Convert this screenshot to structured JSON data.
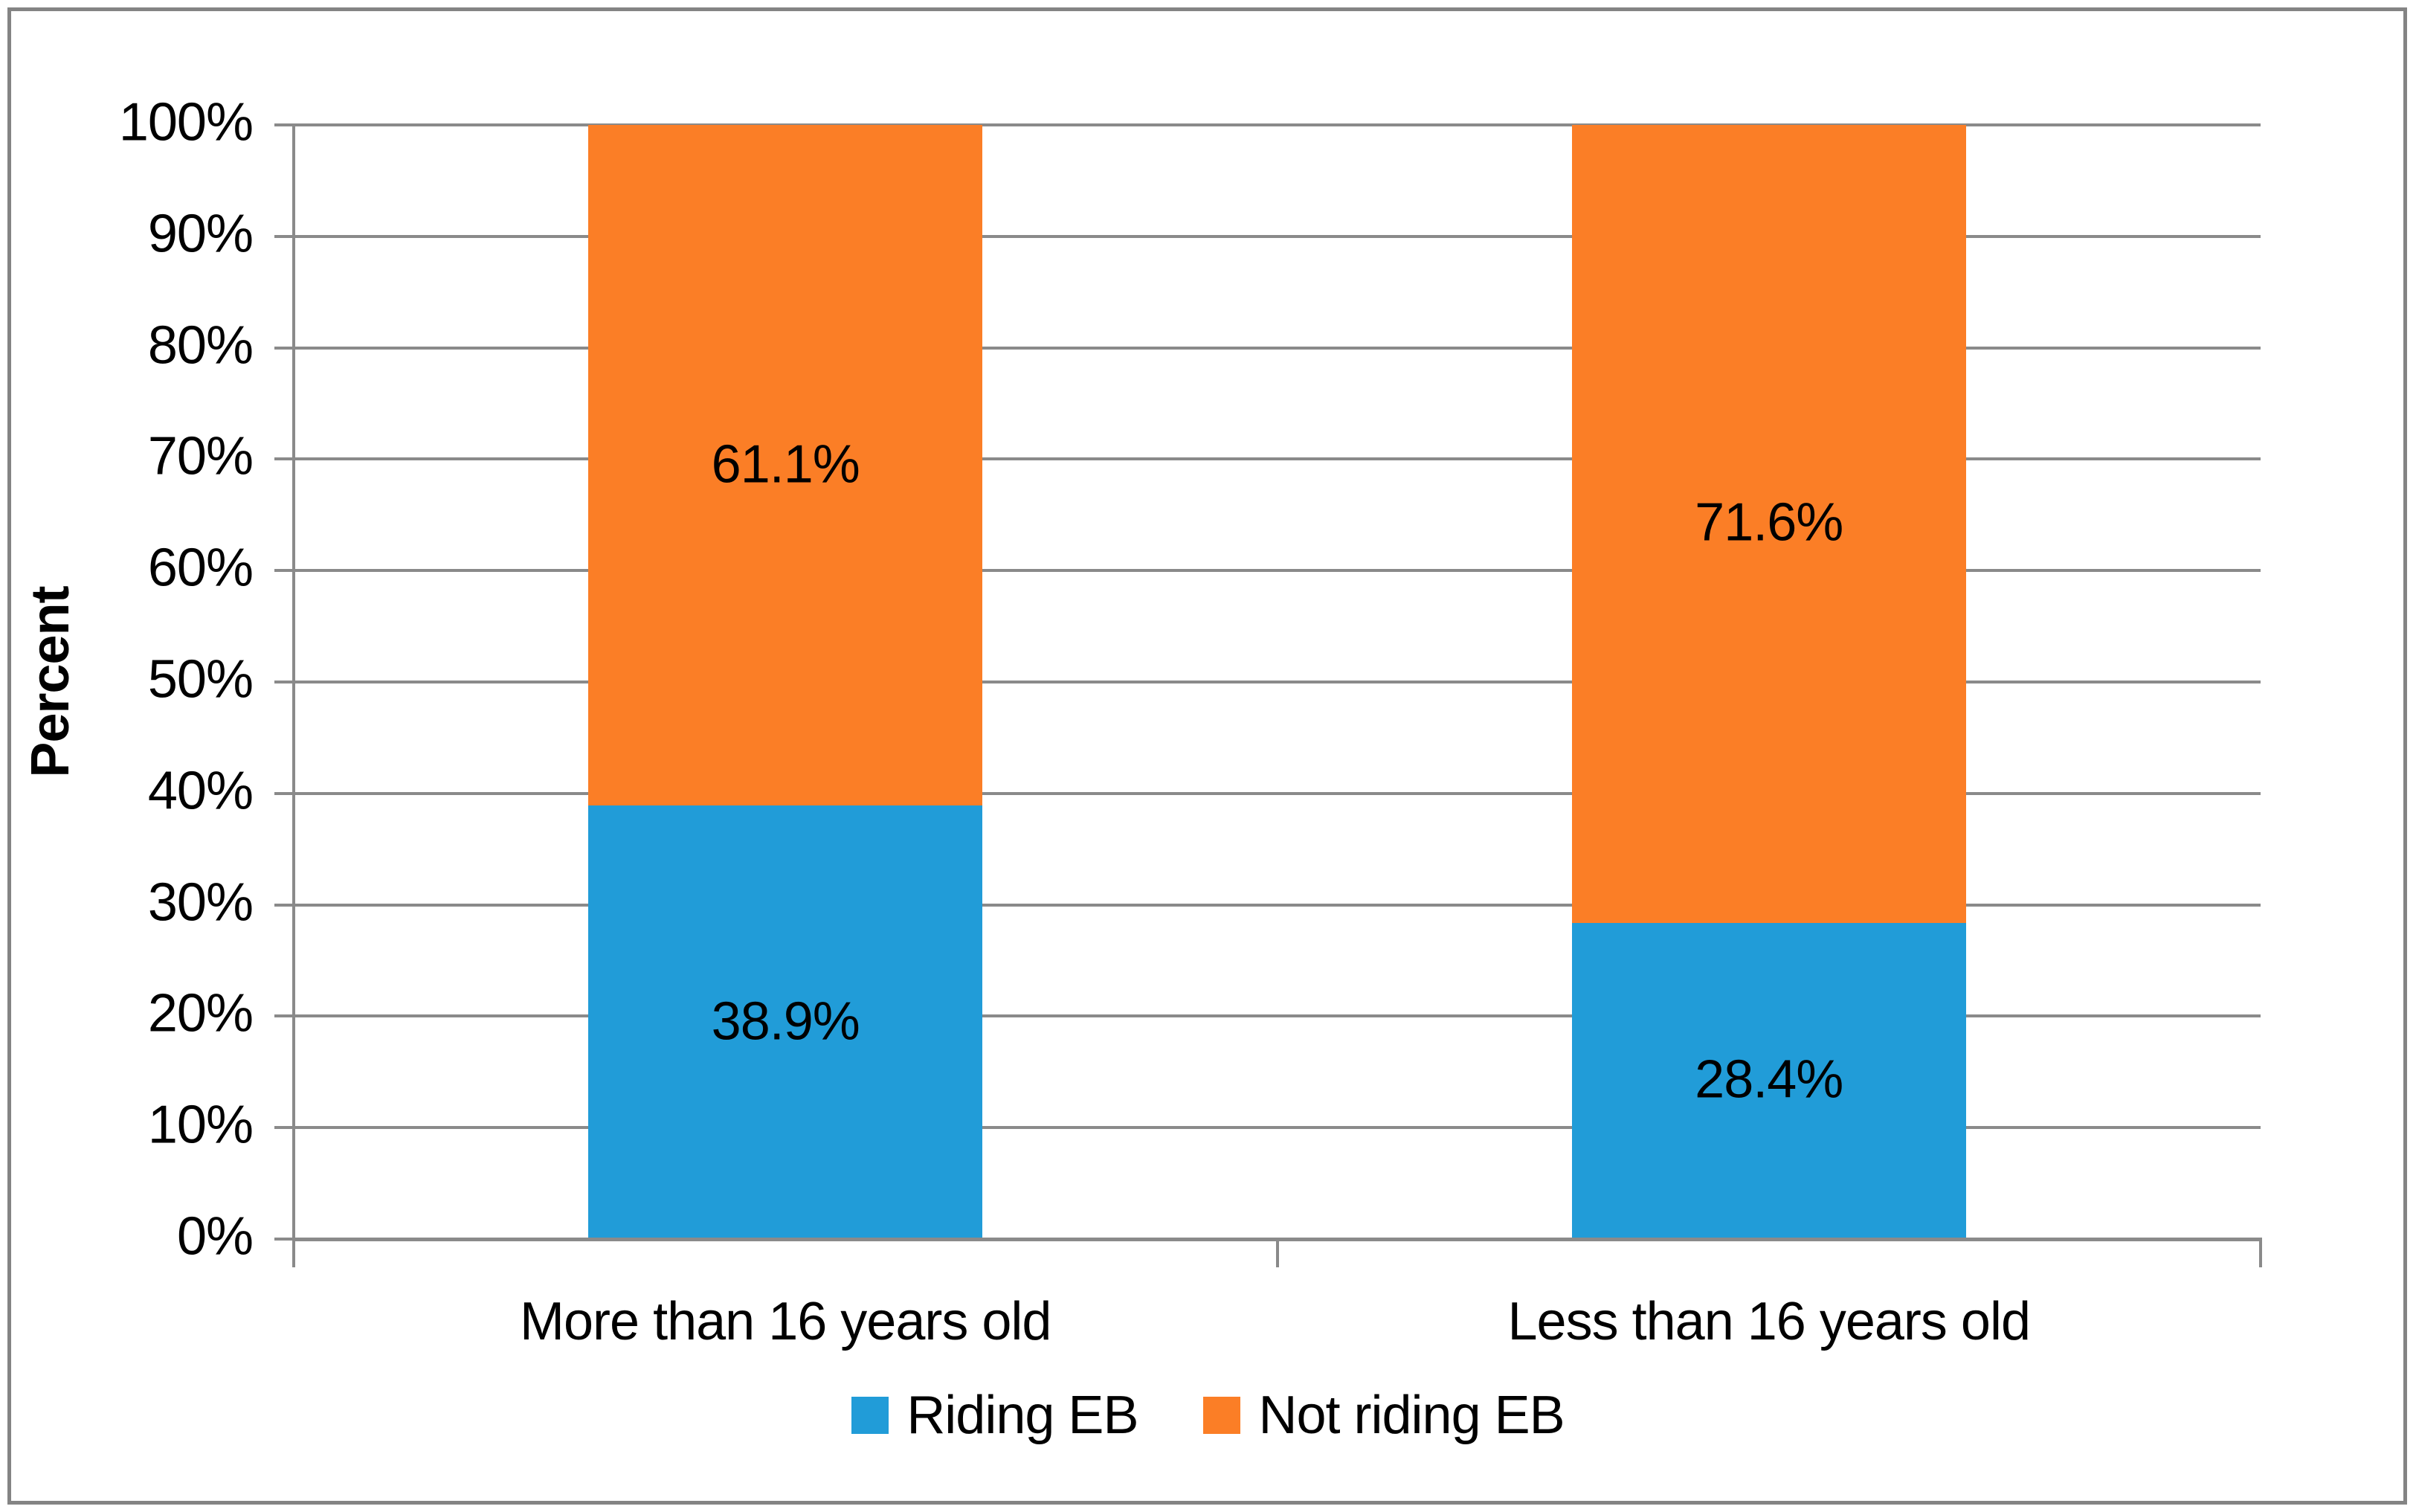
{
  "figure": {
    "background": "#ffffff",
    "border_color": "#848484",
    "axis_color": "#8A8A8A",
    "grid_color": "#8A8A8A",
    "text_color": "#000000"
  },
  "chart_data": {
    "type": "bar",
    "stacked": true,
    "title": "",
    "xlabel": "",
    "ylabel": "Percent",
    "categories": [
      "More than 16 years old",
      "Less than 16 years old"
    ],
    "series": [
      {
        "name": "Riding EB",
        "color": "#219CD8",
        "values": [
          38.9,
          28.4
        ],
        "labels": [
          "38.9%",
          "28.4%"
        ]
      },
      {
        "name": "Not riding EB",
        "color": "#FB7E26",
        "values": [
          61.1,
          71.6
        ],
        "labels": [
          "61.1%",
          "71.6%"
        ]
      }
    ],
    "ylim": [
      0,
      100
    ],
    "yticks": [
      "0%",
      "10%",
      "20%",
      "30%",
      "40%",
      "50%",
      "60%",
      "70%",
      "80%",
      "90%",
      "100%"
    ],
    "grid": true,
    "legend_position": "bottom"
  }
}
